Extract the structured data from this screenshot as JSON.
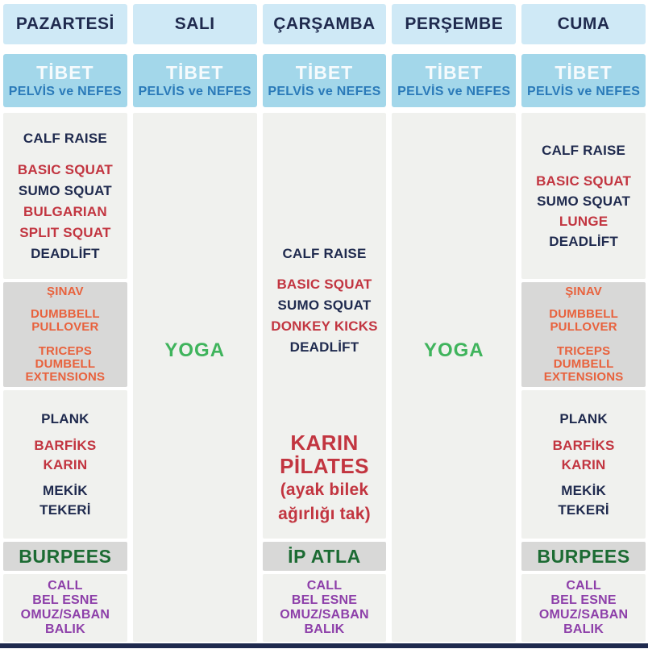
{
  "colors": {
    "navy_text": "#1f2a4e",
    "red_text": "#c23540",
    "orange_text": "#e8623d",
    "yoga_green": "#3fb45c",
    "dark_green": "#1c6b33",
    "purple_text": "#8d3fa9",
    "day_header_bg": "#cfe9f6",
    "tibet_bg": "#a3d7ea",
    "tibet_text": "#ffffff",
    "pelvis_text": "#2a7ab9",
    "cell_bg": "#f0f1ee",
    "gray_bg": "#d8d8d7",
    "footer_bar": "#1f2a4e"
  },
  "columns": [
    {
      "day": "PAZARTESİ",
      "tibet": "TİBET",
      "pelvis": "PELVİS ve NEFES",
      "squat_block": [
        "CALF RAISE",
        "BASIC SQUAT",
        "SUMO SQUAT",
        "BULGARIAN",
        "SPLIT SQUAT",
        "DEADLİFT"
      ],
      "push_block": [
        "ŞINAV",
        "DUMBBELL",
        "PULLOVER",
        "TRICEPS",
        "DUMBELL",
        "EXTENSIONS"
      ],
      "core_block": [
        "PLANK",
        "BARFİKS",
        "KARIN",
        "MEKİK",
        "TEKERİ"
      ],
      "burpees": "BURPEES",
      "stretch_block": [
        "CALL",
        "BEL ESNE",
        "OMUZ/SABAN",
        "BALIK"
      ]
    },
    {
      "day": "SALI",
      "tibet": "TİBET",
      "pelvis": "PELVİS ve NEFES",
      "yoga": "YOGA"
    },
    {
      "day": "ÇARŞAMBA",
      "tibet": "TİBET",
      "pelvis": "PELVİS ve NEFES",
      "squat_block": [
        "CALF RAISE",
        "BASIC SQUAT",
        "SUMO SQUAT",
        "DONKEY KICKS",
        "DEADLİFT"
      ],
      "pilates_block": [
        "KARIN",
        "PİLATES",
        "(ayak bilek",
        "ağırlığı tak)"
      ],
      "rope": "İP ATLA",
      "stretch_block": [
        "CALL",
        "BEL ESNE",
        "OMUZ/SABAN",
        "BALIK"
      ]
    },
    {
      "day": "PERŞEMBE",
      "tibet": "TİBET",
      "pelvis": "PELVİS ve NEFES",
      "yoga": "YOGA"
    },
    {
      "day": "CUMA",
      "tibet": "TİBET",
      "pelvis": "PELVİS ve NEFES",
      "squat_block": [
        "CALF RAISE",
        "BASIC SQUAT",
        "SUMO SQUAT",
        "LUNGE",
        "DEADLİFT"
      ],
      "push_block": [
        "ŞINAV",
        "DUMBBELL",
        "PULLOVER",
        "TRICEPS",
        "DUMBELL",
        "EXTENSIONS"
      ],
      "core_block": [
        "PLANK",
        "BARFİKS",
        "KARIN",
        "MEKİK",
        "TEKERİ"
      ],
      "burpees": "BURPEES",
      "stretch_block": [
        "CALL",
        "BEL ESNE",
        "OMUZ/SABAN",
        "BALIK"
      ]
    }
  ]
}
